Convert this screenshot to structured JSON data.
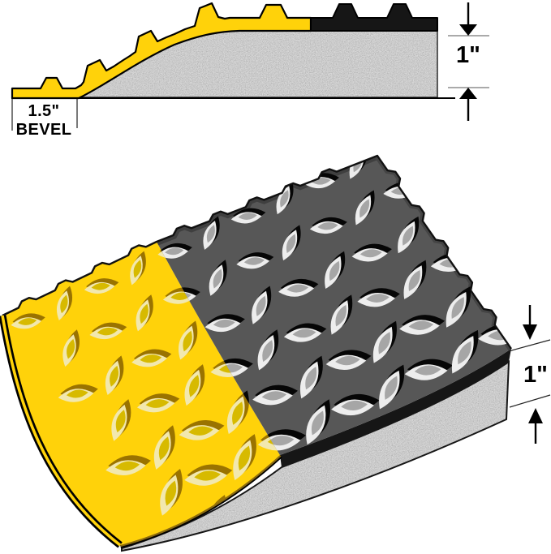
{
  "diagram": {
    "title": "Beveled-edge diamond plate mat dimension diagram",
    "cross_section": {
      "bevel_width_label": "1.5\"",
      "bevel_text": "BEVEL",
      "thickness_label": "1\""
    },
    "perspective": {
      "thickness_label": "1\""
    },
    "colors": {
      "mat_yellow": "#FFD20A",
      "mat_gray": "#575757",
      "edge_black": "#161616",
      "foam_base": "#D8D8D8",
      "foam_speck": "#6E6E6E",
      "bevel_brown": "#8A6A10",
      "lens_brown": "#9A7300",
      "lens_cream": "#F2E8AE",
      "lens_olive": "#D7BA00",
      "lens_black": "#060606",
      "lens_silver": "#EDEDED",
      "lens_gray": "#A6A6A6",
      "outline": "#111111"
    }
  }
}
